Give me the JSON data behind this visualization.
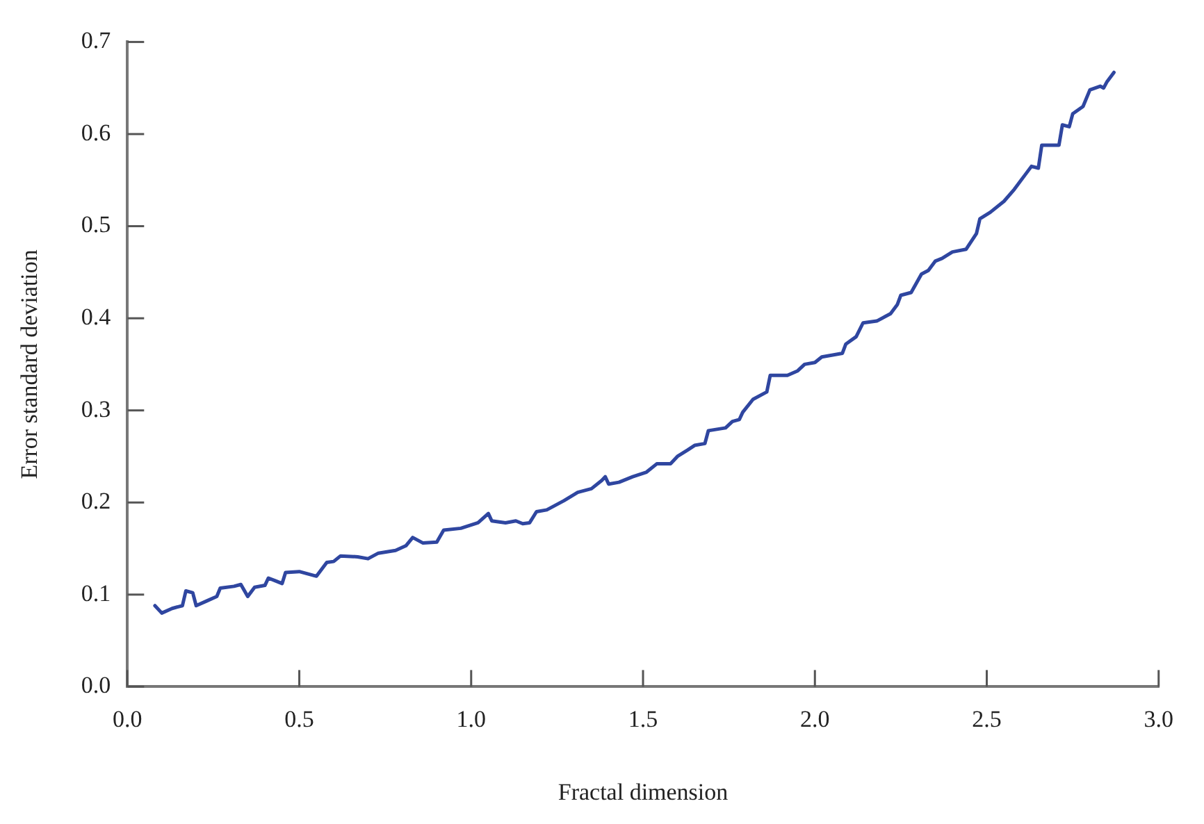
{
  "chart_data": {
    "type": "line",
    "xlabel": "Fractal dimension",
    "ylabel": "Error standard deviation",
    "x": [
      0.08,
      0.1,
      0.13,
      0.16,
      0.17,
      0.19,
      0.2,
      0.23,
      0.26,
      0.27,
      0.31,
      0.33,
      0.35,
      0.37,
      0.4,
      0.41,
      0.43,
      0.45,
      0.46,
      0.5,
      0.55,
      0.58,
      0.6,
      0.62,
      0.67,
      0.7,
      0.73,
      0.78,
      0.81,
      0.83,
      0.86,
      0.9,
      0.92,
      0.97,
      1.02,
      1.05,
      1.06,
      1.1,
      1.13,
      1.15,
      1.17,
      1.19,
      1.22,
      1.27,
      1.31,
      1.35,
      1.38,
      1.39,
      1.4,
      1.43,
      1.47,
      1.51,
      1.54,
      1.58,
      1.6,
      1.63,
      1.65,
      1.68,
      1.69,
      1.74,
      1.76,
      1.78,
      1.79,
      1.82,
      1.86,
      1.87,
      1.92,
      1.95,
      1.97,
      2.0,
      2.02,
      2.08,
      2.09,
      2.12,
      2.14,
      2.18,
      2.22,
      2.24,
      2.25,
      2.28,
      2.31,
      2.33,
      2.35,
      2.37,
      2.4,
      2.44,
      2.47,
      2.48,
      2.51,
      2.55,
      2.58,
      2.61,
      2.63,
      2.65,
      2.66,
      2.71,
      2.72,
      2.74,
      2.75,
      2.78,
      2.8,
      2.83,
      2.84,
      2.85,
      2.87
    ],
    "series": [
      {
        "color": "#2f46a0",
        "values": [
          0.088,
          0.08,
          0.085,
          0.088,
          0.104,
          0.102,
          0.088,
          0.093,
          0.098,
          0.107,
          0.109,
          0.111,
          0.098,
          0.108,
          0.11,
          0.118,
          0.115,
          0.112,
          0.124,
          0.125,
          0.12,
          0.135,
          0.136,
          0.142,
          0.141,
          0.139,
          0.145,
          0.148,
          0.153,
          0.162,
          0.156,
          0.157,
          0.17,
          0.172,
          0.178,
          0.188,
          0.18,
          0.178,
          0.18,
          0.177,
          0.178,
          0.19,
          0.192,
          0.202,
          0.211,
          0.215,
          0.224,
          0.228,
          0.22,
          0.222,
          0.228,
          0.233,
          0.242,
          0.242,
          0.25,
          0.257,
          0.262,
          0.264,
          0.278,
          0.281,
          0.288,
          0.29,
          0.298,
          0.312,
          0.32,
          0.338,
          0.338,
          0.343,
          0.35,
          0.352,
          0.358,
          0.362,
          0.372,
          0.38,
          0.395,
          0.397,
          0.405,
          0.415,
          0.425,
          0.428,
          0.448,
          0.452,
          0.462,
          0.465,
          0.472,
          0.475,
          0.492,
          0.508,
          0.515,
          0.527,
          0.54,
          0.555,
          0.565,
          0.563,
          0.588,
          0.588,
          0.61,
          0.608,
          0.622,
          0.63,
          0.648,
          0.652,
          0.65,
          0.657,
          0.667
        ]
      }
    ],
    "xlim": [
      0,
      3
    ],
    "xticks": [
      {
        "value": 0,
        "label": "0.0"
      },
      {
        "value": 0.5,
        "label": "0.5"
      },
      {
        "value": 1,
        "label": "1.0"
      },
      {
        "value": 1.5,
        "label": "1.5"
      },
      {
        "value": 2,
        "label": "2.0"
      },
      {
        "value": 2.5,
        "label": "2.5"
      },
      {
        "value": 3,
        "label": "3.0"
      }
    ],
    "ylim": [
      0,
      0.7
    ],
    "yticks": [
      {
        "value": 0,
        "label": "0.0"
      },
      0.1,
      0.2,
      0.3,
      0.4,
      0.5,
      0.6,
      0.7
    ],
    "grid": false,
    "legend": false,
    "marker": "none",
    "line_style": "solid"
  }
}
